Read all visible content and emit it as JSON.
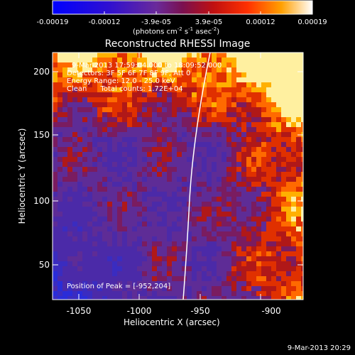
{
  "colorbar": {
    "ticks": [
      "-0.00019",
      "-0.00012",
      "-3.9e-05",
      "3.9e-05",
      "0.00012",
      "0.00019"
    ],
    "units_prefix": "(photons cm",
    "units_sup1": "-2",
    "units_mid": " s",
    "units_sup2": "-1",
    "units_mid2": " asec",
    "units_sup3": "-2",
    "units_suffix": ")"
  },
  "plot": {
    "title": "Reconstructed RHESSI Image",
    "overlay_lines": [
      "9-Mar-2013 17:59:04.000 to 18:09:52.000",
      "Detectors: 3F 5F 6F 7F 8F 9F, Att 0",
      "Energy Range: 12.0 - 25.0 keV",
      "Clean      Total counts: 1.72E+04"
    ],
    "peak_text": "Position of Peak = [-952,204]",
    "xlabel": "Heliocentric X (arcsec)",
    "ylabel": "Heliocentric Y (arcsec)",
    "xticks": [
      "-1050",
      "-1000",
      "-950",
      "-900"
    ],
    "yticks": [
      "200",
      "150",
      "100",
      "50"
    ]
  },
  "footer_timestamp": "9-Mar-2013 20:29",
  "colors": {
    "background": "#000000",
    "axes": "#ffffff",
    "limb": "#ffffff",
    "cmap_low": "#0000ff",
    "cmap_mid": "#6a34a0",
    "cmap_high": "#ff2000",
    "cmap_top": "#ffffff"
  }
}
